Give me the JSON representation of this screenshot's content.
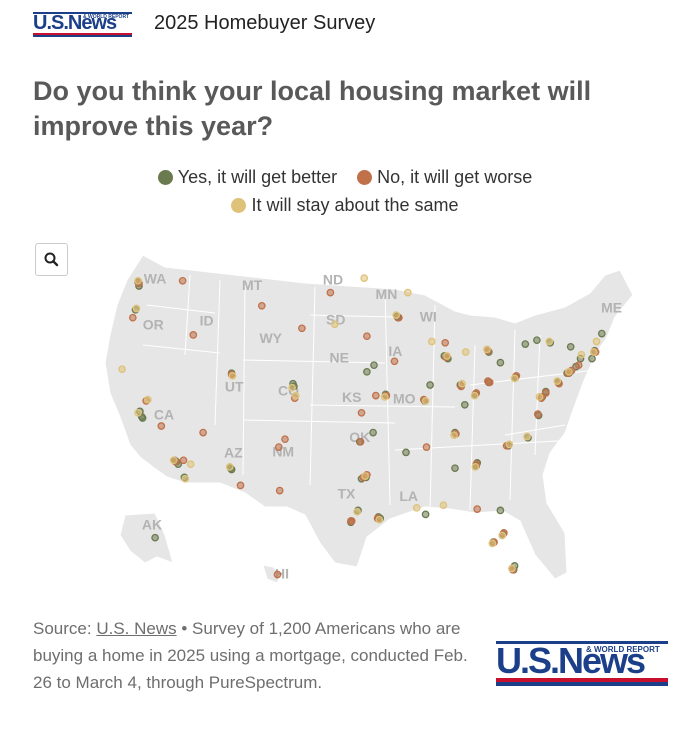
{
  "header": {
    "logo": {
      "word": "U.S.News",
      "tag": "& WORLD REPORT"
    },
    "survey_title": "2025 Homebuyer Survey"
  },
  "question": "Do you think your local housing market will improve this year?",
  "colors": {
    "better": "#6b7a4f",
    "worse": "#c0714a",
    "same": "#dfc27a",
    "land": "#e6e6e6",
    "state_border": "#ffffff",
    "state_label": "#b3b3b3"
  },
  "legend": {
    "better": "Yes, it will get better",
    "worse": "No, it will get worse",
    "same": "It will stay about the same"
  },
  "search": {
    "icon": "search-icon"
  },
  "source": {
    "label": "Source:",
    "link": "U.S. News",
    "text": "• Survey of 1,200 Americans who are buying a home in 2025 using a mortgage, conducted Feb. 26 to March 4, through PureSpectrum."
  },
  "chart_data": {
    "type": "scatter",
    "title": "Do you think your local housing market will improve this year?",
    "note": "Dot map of survey respondent locations across the U.S.; coordinates are approximate longitude/latitude.",
    "series": [
      {
        "name": "Yes, it will get better",
        "key": "better",
        "points": [
          [
            -122.4,
            47.6
          ],
          [
            -122.3,
            47.3
          ],
          [
            -122.7,
            45.5
          ],
          [
            -122.2,
            37.8
          ],
          [
            -122.0,
            37.4
          ],
          [
            -121.9,
            37.3
          ],
          [
            -118.3,
            34.1
          ],
          [
            -118.1,
            34.0
          ],
          [
            -117.9,
            33.8
          ],
          [
            -117.2,
            32.8
          ],
          [
            -112.0,
            33.5
          ],
          [
            -111.9,
            33.4
          ],
          [
            -111.9,
            40.7
          ],
          [
            -104.9,
            39.7
          ],
          [
            -105.0,
            39.9
          ],
          [
            -97.7,
            30.3
          ],
          [
            -96.8,
            32.8
          ],
          [
            -97.3,
            32.7
          ],
          [
            -95.4,
            29.8
          ],
          [
            -95.2,
            29.7
          ],
          [
            -98.5,
            29.4
          ],
          [
            -93.3,
            45.0
          ],
          [
            -93.2,
            44.9
          ],
          [
            -90.2,
            38.6
          ],
          [
            -94.6,
            39.1
          ],
          [
            -87.7,
            41.9
          ],
          [
            -87.6,
            41.8
          ],
          [
            -88.0,
            42.0
          ],
          [
            -86.2,
            39.8
          ],
          [
            -84.5,
            39.1
          ],
          [
            -83.0,
            40.0
          ],
          [
            -81.7,
            41.5
          ],
          [
            -83.0,
            42.3
          ],
          [
            -80.0,
            40.4
          ],
          [
            -84.4,
            33.7
          ],
          [
            -84.3,
            33.9
          ],
          [
            -86.8,
            36.2
          ],
          [
            -86.8,
            33.5
          ],
          [
            -90.1,
            30.0
          ],
          [
            -81.7,
            30.3
          ],
          [
            -82.5,
            27.9
          ],
          [
            -81.4,
            28.5
          ],
          [
            -80.2,
            25.8
          ],
          [
            -80.1,
            26.1
          ],
          [
            -80.8,
            35.2
          ],
          [
            -78.6,
            35.8
          ],
          [
            -77.4,
            37.5
          ],
          [
            -77.0,
            38.9
          ],
          [
            -76.6,
            39.3
          ],
          [
            -75.2,
            40.0
          ],
          [
            -74.0,
            40.7
          ],
          [
            -73.9,
            40.8
          ],
          [
            -74.2,
            40.7
          ],
          [
            -73.2,
            41.2
          ],
          [
            -72.7,
            41.8
          ],
          [
            -71.1,
            42.4
          ],
          [
            -71.4,
            41.8
          ],
          [
            -70.3,
            43.7
          ],
          [
            -73.8,
            42.7
          ],
          [
            -76.1,
            43.0
          ],
          [
            -78.9,
            42.9
          ],
          [
            -77.6,
            43.2
          ],
          [
            -85.7,
            38.3
          ],
          [
            -89.6,
            39.8
          ],
          [
            -92.3,
            34.7
          ],
          [
            -97.5,
            35.5
          ],
          [
            -96.0,
            36.2
          ],
          [
            -95.9,
            41.3
          ],
          [
            -96.7,
            40.8
          ],
          [
            -149.9,
            61.2
          ]
        ]
      },
      {
        "name": "No, it will get worse",
        "key": "worse",
        "points": [
          [
            -122.3,
            47.5
          ],
          [
            -117.4,
            47.7
          ],
          [
            -116.2,
            43.6
          ],
          [
            -123.0,
            44.9
          ],
          [
            -121.5,
            38.6
          ],
          [
            -119.8,
            36.7
          ],
          [
            -118.2,
            34.0
          ],
          [
            -117.3,
            34.1
          ],
          [
            -115.1,
            36.2
          ],
          [
            -111.9,
            40.6
          ],
          [
            -110.9,
            32.2
          ],
          [
            -105.9,
            35.7
          ],
          [
            -104.8,
            38.8
          ],
          [
            -106.6,
            35.1
          ],
          [
            -97.4,
            35.5
          ],
          [
            -97.1,
            32.8
          ],
          [
            -96.7,
            33.0
          ],
          [
            -95.5,
            29.7
          ],
          [
            -98.4,
            29.5
          ],
          [
            -93.6,
            41.6
          ],
          [
            -93.1,
            44.9
          ],
          [
            -90.3,
            38.7
          ],
          [
            -94.5,
            39.0
          ],
          [
            -87.9,
            43.0
          ],
          [
            -87.8,
            41.9
          ],
          [
            -86.1,
            39.7
          ],
          [
            -84.4,
            39.2
          ],
          [
            -83.1,
            40.1
          ],
          [
            -83.1,
            42.4
          ],
          [
            -79.9,
            40.5
          ],
          [
            -84.4,
            33.8
          ],
          [
            -86.7,
            36.1
          ],
          [
            -90.0,
            35.1
          ],
          [
            -82.4,
            27.9
          ],
          [
            -81.3,
            28.6
          ],
          [
            -80.3,
            25.8
          ],
          [
            -81.0,
            35.2
          ],
          [
            -77.5,
            37.6
          ],
          [
            -77.1,
            38.8
          ],
          [
            -75.1,
            39.9
          ],
          [
            -74.1,
            40.7
          ],
          [
            -73.7,
            40.9
          ],
          [
            -71.0,
            42.3
          ],
          [
            -72.9,
            41.3
          ],
          [
            -76.6,
            39.2
          ],
          [
            -82.9,
            40.0
          ],
          [
            -98.5,
            29.5
          ],
          [
            -106.5,
            31.8
          ],
          [
            -100.8,
            46.8
          ],
          [
            -96.7,
            43.5
          ],
          [
            -97.3,
            37.7
          ],
          [
            -95.7,
            39.0
          ],
          [
            -104.0,
            44.1
          ],
          [
            -108.5,
            45.8
          ],
          [
            -84.3,
            30.4
          ],
          [
            -157.9,
            21.3
          ]
        ]
      },
      {
        "name": "It will stay about the same",
        "key": "same",
        "points": [
          [
            -122.4,
            47.7
          ],
          [
            -122.6,
            45.6
          ],
          [
            -124.2,
            41.0
          ],
          [
            -122.4,
            37.7
          ],
          [
            -121.3,
            38.7
          ],
          [
            -118.4,
            34.1
          ],
          [
            -117.1,
            32.7
          ],
          [
            -116.5,
            33.8
          ],
          [
            -112.1,
            33.6
          ],
          [
            -111.8,
            40.5
          ],
          [
            -105.1,
            39.6
          ],
          [
            -104.7,
            39.0
          ],
          [
            -97.8,
            30.2
          ],
          [
            -96.9,
            32.9
          ],
          [
            -95.3,
            29.6
          ],
          [
            -93.4,
            45.1
          ],
          [
            -90.1,
            38.6
          ],
          [
            -94.7,
            38.9
          ],
          [
            -87.7,
            42.0
          ],
          [
            -86.0,
            39.9
          ],
          [
            -84.6,
            39.0
          ],
          [
            -83.2,
            42.5
          ],
          [
            -80.1,
            40.3
          ],
          [
            -84.5,
            33.6
          ],
          [
            -86.9,
            36.0
          ],
          [
            -82.6,
            27.8
          ],
          [
            -81.5,
            28.4
          ],
          [
            -80.4,
            25.9
          ],
          [
            -80.7,
            35.3
          ],
          [
            -78.7,
            35.9
          ],
          [
            -77.3,
            38.9
          ],
          [
            -75.3,
            40.1
          ],
          [
            -74.0,
            40.8
          ],
          [
            -71.2,
            42.3
          ],
          [
            -72.6,
            42.1
          ],
          [
            -76.2,
            43.1
          ],
          [
            -88.1,
            30.7
          ],
          [
            -91.1,
            30.5
          ],
          [
            -92.1,
            46.8
          ],
          [
            -89.4,
            43.1
          ],
          [
            -85.6,
            42.3
          ],
          [
            -100.3,
            44.4
          ],
          [
            -97.0,
            47.9
          ],
          [
            -70.9,
            43.1
          ]
        ]
      }
    ]
  }
}
